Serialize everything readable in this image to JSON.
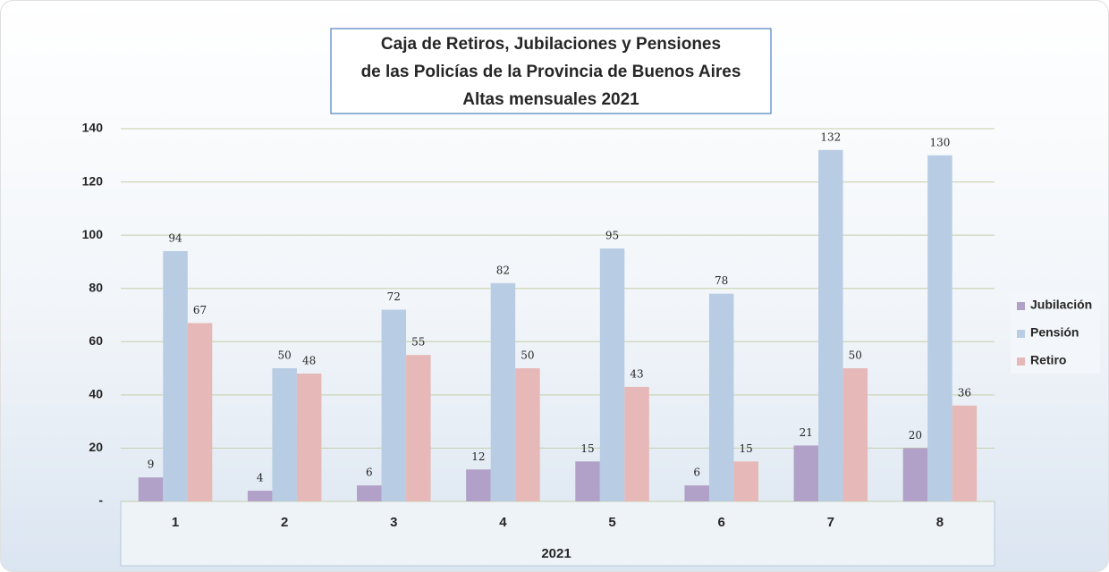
{
  "chart_data": {
    "type": "bar",
    "title": [
      "Caja de Retiros, Jubilaciones y Pensiones",
      "de las Policías de la Provincia de Buenos Aires",
      "Altas mensuales 2021"
    ],
    "xlabel": "2021",
    "categories": [
      "1",
      "2",
      "3",
      "4",
      "5",
      "6",
      "7",
      "8"
    ],
    "series": [
      {
        "name": "Jubilación",
        "color": "#b1a0c7",
        "values": [
          9,
          4,
          6,
          12,
          15,
          6,
          21,
          20
        ]
      },
      {
        "name": "Pensión",
        "color": "#b8cce4",
        "values": [
          94,
          50,
          72,
          82,
          95,
          78,
          132,
          130
        ]
      },
      {
        "name": "Retiro",
        "color": "#e6b9b8",
        "values": [
          67,
          48,
          55,
          50,
          43,
          15,
          50,
          36
        ]
      }
    ],
    "ylim": [
      0,
      140
    ],
    "yticks": [
      {
        "value": 0,
        "label": "-"
      },
      20,
      40,
      60,
      80,
      100,
      120,
      140
    ],
    "grid": true,
    "legend": "right"
  }
}
